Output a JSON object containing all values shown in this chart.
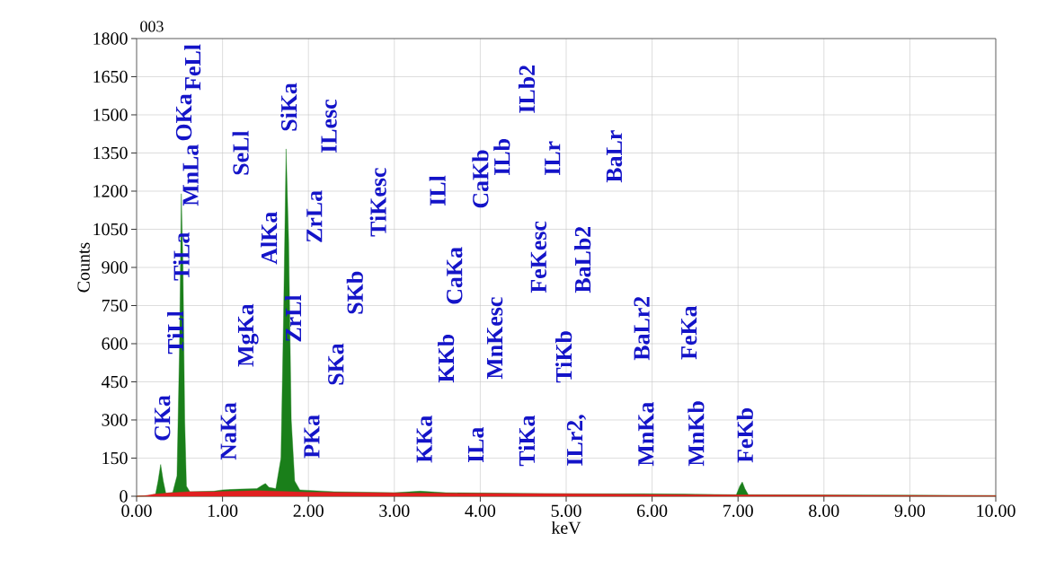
{
  "chart_data": {
    "type": "area",
    "title": "003",
    "xlabel": "keV",
    "ylabel": "Counts",
    "xlim": [
      0,
      10
    ],
    "ylim": [
      0,
      1800
    ],
    "xticks": [
      {
        "value": 0,
        "label": "0.00"
      },
      {
        "value": 1,
        "label": "1.00"
      },
      {
        "value": 2,
        "label": "2.00"
      },
      {
        "value": 3,
        "label": "3.00"
      },
      {
        "value": 4,
        "label": "4.00"
      },
      {
        "value": 5,
        "label": "5.00"
      },
      {
        "value": 6,
        "label": "6.00"
      },
      {
        "value": 7,
        "label": "7.00"
      },
      {
        "value": 8,
        "label": "8.00"
      },
      {
        "value": 9,
        "label": "9.00"
      },
      {
        "value": 10,
        "label": "10.00"
      }
    ],
    "yticks": [
      0,
      150,
      300,
      450,
      600,
      750,
      900,
      1050,
      1200,
      1350,
      1500,
      1650,
      1800
    ],
    "grid": true,
    "series": [
      {
        "color": "#1a7f1a",
        "x": [
          0,
          0.15,
          0.22,
          0.25,
          0.28,
          0.31,
          0.34,
          0.42,
          0.47,
          0.5,
          0.52,
          0.54,
          0.56,
          0.58,
          0.62,
          0.9,
          1.0,
          1.2,
          1.4,
          1.47,
          1.5,
          1.54,
          1.62,
          1.68,
          1.71,
          1.74,
          1.77,
          1.8,
          1.84,
          1.9,
          2.3,
          3.0,
          3.3,
          3.6,
          5.0,
          5.9,
          6.5,
          6.98,
          7.02,
          7.05,
          7.08,
          7.12,
          8,
          9,
          10
        ],
        "values": [
          0,
          3,
          8,
          60,
          125,
          60,
          12,
          15,
          80,
          600,
          1190,
          900,
          300,
          40,
          18,
          20,
          25,
          28,
          30,
          45,
          50,
          35,
          30,
          150,
          700,
          1366,
          1000,
          300,
          60,
          25,
          18,
          14,
          20,
          14,
          10,
          10,
          8,
          6,
          40,
          56,
          30,
          6,
          5,
          4,
          3
        ]
      },
      {
        "color": "#e02020",
        "x": [
          0,
          0.1,
          0.2,
          0.35,
          0.6,
          0.9,
          1.4,
          2.0,
          3,
          4,
          5,
          6,
          7,
          8,
          9,
          10
        ],
        "values": [
          0,
          2,
          8,
          12,
          18,
          18,
          22,
          16,
          13,
          11,
          10,
          7,
          5,
          4,
          3,
          2
        ]
      }
    ],
    "annotations": [
      "CKa",
      "TiLl",
      "TiLa",
      "MnLa",
      "OKa",
      "FeLl",
      "NaKa",
      "MgKa",
      "SeLl",
      "AlKa",
      "SiKa",
      "ZrLl",
      "PKa",
      "ZrLa",
      "ILesc",
      "SKa",
      "SKb",
      "TiKesc",
      "KKa",
      "ILa",
      "KKb",
      "CaKa",
      "ILl",
      "CaKb",
      "ILb",
      "MnKesc",
      "TiKa",
      "FeKesc",
      "ILb2",
      "ILr",
      "TiKb",
      "ILr2,",
      "BaLb2",
      "BaLr",
      "BaLr2",
      "MnKa",
      "FeKa",
      "MnKb",
      "FeKb"
    ]
  }
}
